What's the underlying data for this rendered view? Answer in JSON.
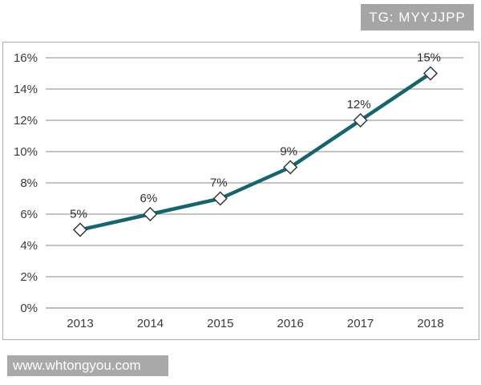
{
  "watermarks": {
    "top_right": "TG: MYYJJPP",
    "bottom_left": "www.whtongyou.com",
    "overlay_bg_color": "#a5a5a5",
    "overlay_text_color": "#ffffff"
  },
  "chart_data": {
    "type": "line",
    "title": "",
    "xlabel": "",
    "ylabel": "",
    "categories": [
      "2013",
      "2014",
      "2015",
      "2016",
      "2017",
      "2018"
    ],
    "values": [
      5,
      6,
      7,
      9,
      12,
      15
    ],
    "data_labels": [
      "5%",
      "6%",
      "7%",
      "9%",
      "12%",
      "15%"
    ],
    "ylim": [
      0,
      16
    ],
    "ytick_step": 2,
    "ytick_labels": [
      "0%",
      "2%",
      "4%",
      "6%",
      "8%",
      "10%",
      "12%",
      "14%",
      "16%"
    ],
    "grid": true,
    "legend_position": "none",
    "line_color": "#15656F",
    "marker": "diamond",
    "marker_fill": "#ffffff",
    "marker_stroke": "#30383a",
    "gridline_color": "#8a8a8a",
    "axis_line_color": "#777777",
    "axis_text_color": "#3a3a3a",
    "data_label_color": "#2e2e2e",
    "frame_border_color": "#ababab"
  }
}
